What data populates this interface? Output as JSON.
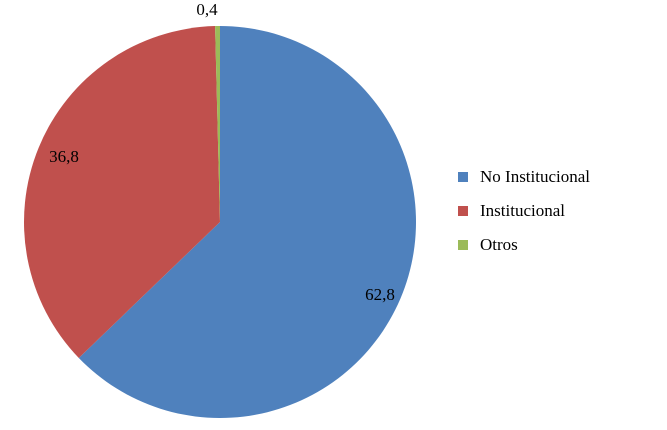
{
  "chart_data": {
    "type": "pie",
    "title": "",
    "categories": [
      "No Institucional",
      "Institucional",
      "Otros"
    ],
    "values": [
      62.8,
      36.8,
      0.4
    ],
    "data_labels": [
      "62,8",
      "36,8",
      "0,4"
    ],
    "colors": [
      "#4F81BD",
      "#C0504D",
      "#9BBB59"
    ],
    "legend_position": "right",
    "start_angle": "12 o'clock",
    "direction": "clockwise"
  }
}
